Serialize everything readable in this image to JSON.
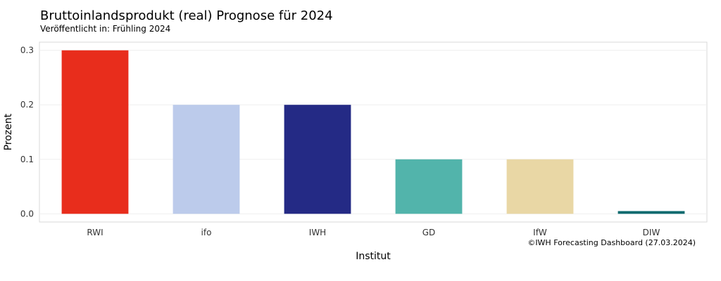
{
  "chart_data": {
    "type": "bar",
    "title": "Bruttoinlandsprodukt (real) Prognose für 2024",
    "subtitle": "Veröffentlicht in: Frühling 2024",
    "xlabel": "Institut",
    "ylabel": "Prozent",
    "categories": [
      "RWI",
      "ifo",
      "IWH",
      "GD",
      "IfW",
      "DIW"
    ],
    "values": [
      0.3,
      0.2,
      0.2,
      0.1,
      0.1,
      0.005
    ],
    "colors": [
      "#e82d1c",
      "#bccbeb",
      "#242a85",
      "#52b4ab",
      "#e9d7a5",
      "#0a6a6e"
    ],
    "ylim": [
      -0.015,
      0.315
    ],
    "yticks": [
      "0.0",
      "0.1",
      "0.2",
      "0.3"
    ],
    "grid": true,
    "legend": "none"
  },
  "credit": "©IWH Forecasting Dashboard (27.03.2024)"
}
